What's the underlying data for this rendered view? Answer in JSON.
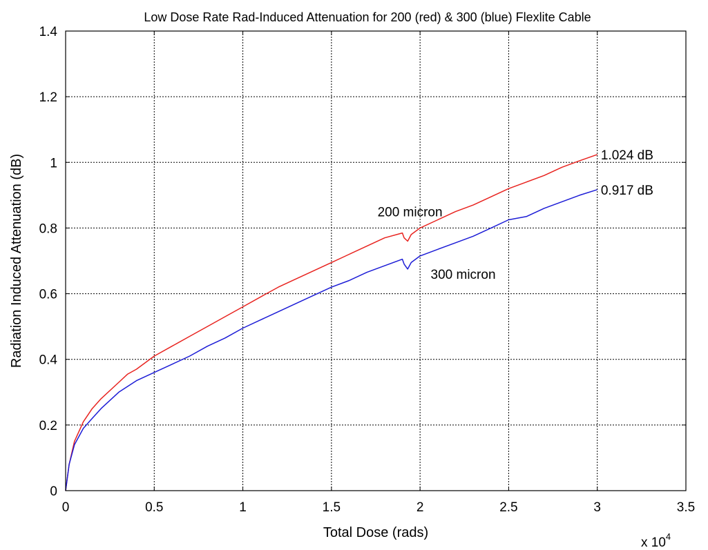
{
  "chart_data": {
    "type": "line",
    "title": "Low Dose Rate Rad-Induced Attenuation for 200 (red) & 300 (blue) Flexlite Cable",
    "xlabel": "Total Dose (rads)",
    "ylabel": "Radiation Induced Attenuation (dB)",
    "x_multiplier_label": "x 10",
    "x_multiplier_exponent": "4",
    "xlim": [
      0,
      3.5
    ],
    "ylim": [
      0,
      1.4
    ],
    "x_ticks": [
      "0",
      "0.5",
      "1",
      "1.5",
      "2",
      "2.5",
      "3",
      "3.5"
    ],
    "y_ticks": [
      "0",
      "0.2",
      "0.4",
      "0.6",
      "0.8",
      "1",
      "1.2",
      "1.4"
    ],
    "grid": true,
    "x_units": "x 10^4 rads",
    "series": [
      {
        "color": "#e8231f",
        "x": [
          0,
          0.02,
          0.05,
          0.1,
          0.15,
          0.2,
          0.3,
          0.35,
          0.4,
          0.5,
          0.6,
          0.7,
          0.8,
          0.9,
          1.0,
          1.1,
          1.2,
          1.3,
          1.4,
          1.5,
          1.6,
          1.7,
          1.8,
          1.9,
          1.91,
          1.93,
          1.95,
          2.0,
          2.1,
          2.2,
          2.3,
          2.4,
          2.5,
          2.6,
          2.7,
          2.8,
          2.9,
          3.0
        ],
        "y": [
          0,
          0.08,
          0.15,
          0.21,
          0.25,
          0.28,
          0.33,
          0.355,
          0.37,
          0.41,
          0.44,
          0.47,
          0.5,
          0.53,
          0.56,
          0.59,
          0.62,
          0.645,
          0.67,
          0.695,
          0.72,
          0.745,
          0.77,
          0.785,
          0.77,
          0.76,
          0.78,
          0.8,
          0.825,
          0.85,
          0.87,
          0.895,
          0.92,
          0.94,
          0.96,
          0.985,
          1.005,
          1.024
        ]
      },
      {
        "color": "#1c1cd6",
        "x": [
          0,
          0.02,
          0.05,
          0.1,
          0.15,
          0.2,
          0.3,
          0.4,
          0.5,
          0.6,
          0.7,
          0.8,
          0.9,
          1.0,
          1.1,
          1.2,
          1.3,
          1.4,
          1.5,
          1.6,
          1.7,
          1.8,
          1.9,
          1.91,
          1.93,
          1.95,
          2.0,
          2.1,
          2.2,
          2.3,
          2.4,
          2.5,
          2.6,
          2.7,
          2.8,
          2.9,
          3.0
        ],
        "y": [
          0,
          0.08,
          0.14,
          0.19,
          0.22,
          0.25,
          0.3,
          0.335,
          0.36,
          0.385,
          0.41,
          0.44,
          0.465,
          0.495,
          0.52,
          0.545,
          0.57,
          0.595,
          0.62,
          0.64,
          0.665,
          0.685,
          0.705,
          0.69,
          0.675,
          0.695,
          0.715,
          0.735,
          0.755,
          0.775,
          0.8,
          0.825,
          0.835,
          0.86,
          0.88,
          0.9,
          0.917
        ]
      }
    ],
    "annotations": [
      {
        "text": "1.024 dB",
        "x": 3.02,
        "y": 1.024
      },
      {
        "text": "0.917 dB",
        "x": 3.02,
        "y": 0.917
      },
      {
        "text": "200 micron",
        "x": 1.76,
        "y": 0.85
      },
      {
        "text": "300 micron",
        "x": 2.06,
        "y": 0.66
      }
    ]
  }
}
